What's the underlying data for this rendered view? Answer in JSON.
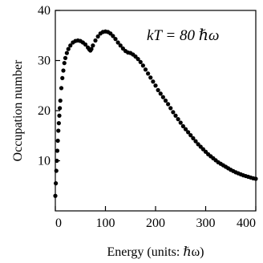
{
  "chart_data": {
    "type": "scatter",
    "xlabel": "Energy (units: ℏω)",
    "ylabel": "Occupation number",
    "annotation": "kT = 80 ℏω",
    "xlim": [
      0,
      400
    ],
    "ylim": [
      0,
      40
    ],
    "xticks": [
      0,
      100,
      200,
      300,
      400
    ],
    "yticks": [
      10,
      20,
      30,
      40
    ],
    "grid": false,
    "marker_color": "#000000",
    "points": [
      [
        0,
        3
      ],
      [
        1,
        5.5
      ],
      [
        2,
        8
      ],
      [
        3,
        10
      ],
      [
        4,
        12
      ],
      [
        5,
        14
      ],
      [
        6,
        16
      ],
      [
        7,
        17.5
      ],
      [
        8,
        19
      ],
      [
        9,
        20.5
      ],
      [
        10,
        22
      ],
      [
        12,
        24.5
      ],
      [
        14,
        26.5
      ],
      [
        16,
        28
      ],
      [
        18,
        29.5
      ],
      [
        20,
        30.5
      ],
      [
        23,
        31.5
      ],
      [
        26,
        32.3
      ],
      [
        30,
        33
      ],
      [
        35,
        33.6
      ],
      [
        40,
        33.9
      ],
      [
        45,
        34
      ],
      [
        50,
        33.9
      ],
      [
        55,
        33.6
      ],
      [
        60,
        33.2
      ],
      [
        65,
        32.6
      ],
      [
        68,
        32.2
      ],
      [
        70,
        32
      ],
      [
        72,
        32.3
      ],
      [
        75,
        33
      ],
      [
        80,
        34
      ],
      [
        85,
        34.8
      ],
      [
        90,
        35.4
      ],
      [
        95,
        35.7
      ],
      [
        100,
        35.8
      ],
      [
        105,
        35.7
      ],
      [
        110,
        35.4
      ],
      [
        115,
        34.9
      ],
      [
        120,
        34.3
      ],
      [
        125,
        33.6
      ],
      [
        130,
        33
      ],
      [
        135,
        32.4
      ],
      [
        140,
        31.9
      ],
      [
        145,
        31.6
      ],
      [
        150,
        31.5
      ],
      [
        155,
        31.2
      ],
      [
        160,
        30.8
      ],
      [
        165,
        30.3
      ],
      [
        170,
        29.7
      ],
      [
        175,
        29
      ],
      [
        180,
        28.2
      ],
      [
        185,
        27.4
      ],
      [
        190,
        26.6
      ],
      [
        195,
        25.8
      ],
      [
        200,
        25
      ],
      [
        205,
        24.1
      ],
      [
        210,
        23.4
      ],
      [
        215,
        22.7
      ],
      [
        220,
        22
      ],
      [
        225,
        21.3
      ],
      [
        230,
        20.5
      ],
      [
        235,
        19.7
      ],
      [
        240,
        19
      ],
      [
        245,
        18.3
      ],
      [
        250,
        17.6
      ],
      [
        255,
        16.9
      ],
      [
        260,
        16.3
      ],
      [
        265,
        15.7
      ],
      [
        270,
        15.1
      ],
      [
        275,
        14.5
      ],
      [
        280,
        13.9
      ],
      [
        285,
        13.3
      ],
      [
        290,
        12.8
      ],
      [
        295,
        12.3
      ],
      [
        300,
        11.8
      ],
      [
        305,
        11.3
      ],
      [
        310,
        10.9
      ],
      [
        315,
        10.5
      ],
      [
        320,
        10.1
      ],
      [
        325,
        9.7
      ],
      [
        330,
        9.4
      ],
      [
        335,
        9.1
      ],
      [
        340,
        8.8
      ],
      [
        345,
        8.5
      ],
      [
        350,
        8.2
      ],
      [
        355,
        7.95
      ],
      [
        360,
        7.7
      ],
      [
        365,
        7.5
      ],
      [
        370,
        7.3
      ],
      [
        375,
        7.1
      ],
      [
        380,
        6.95
      ],
      [
        385,
        6.8
      ],
      [
        390,
        6.65
      ],
      [
        395,
        6.5
      ],
      [
        400,
        6.4
      ]
    ]
  }
}
